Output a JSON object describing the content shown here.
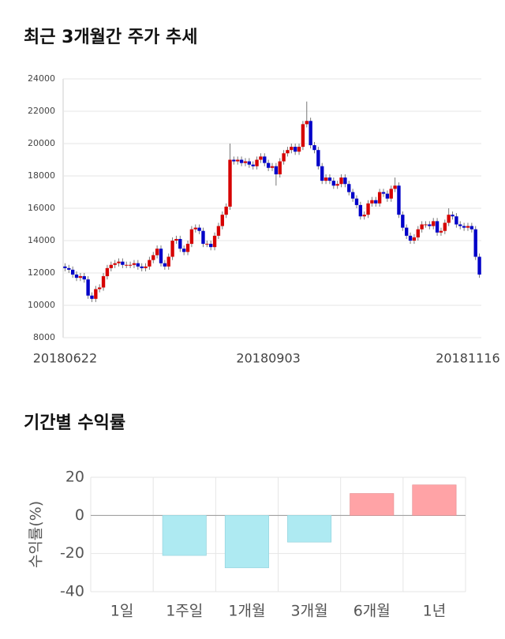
{
  "chart_data": [
    {
      "type": "candlestick",
      "title": "최근 3개월간 주가 추세",
      "categories": [
        "20180622",
        null,
        null,
        null,
        null,
        null,
        null,
        null,
        null,
        null,
        null,
        null,
        null,
        null,
        null,
        null,
        null,
        null,
        null,
        null,
        null,
        null,
        null,
        null,
        null,
        null,
        null,
        null,
        null,
        null,
        null,
        null,
        null,
        null,
        null,
        null,
        null,
        null,
        null,
        null,
        null,
        null,
        null,
        null,
        null,
        null,
        null,
        null,
        null,
        null,
        null,
        null,
        null,
        "20180903",
        null,
        null,
        null,
        null,
        null,
        null,
        null,
        null,
        null,
        null,
        null,
        null,
        null,
        null,
        null,
        null,
        null,
        null,
        null,
        null,
        null,
        null,
        null,
        null,
        null,
        null,
        null,
        null,
        null,
        null,
        null,
        null,
        null,
        null,
        null,
        null,
        null,
        null,
        null,
        null,
        null,
        null,
        null,
        null,
        null,
        null,
        null,
        null,
        null,
        null,
        null,
        "20181116",
        null,
        null,
        null
      ],
      "open": [
        12400,
        12300,
        12200,
        11900,
        11700,
        11800,
        11600,
        10600,
        10400,
        11000,
        11100,
        11800,
        12300,
        12500,
        12600,
        12700,
        12500,
        12500,
        12500,
        12600,
        12400,
        12300,
        12400,
        12800,
        13100,
        13500,
        12600,
        12400,
        13000,
        14000,
        14100,
        13500,
        13300,
        13800,
        14700,
        14800,
        14600,
        13800,
        13800,
        13600,
        14300,
        14900,
        15600,
        16100,
        19000,
        18900,
        19000,
        18800,
        18900,
        18700,
        18600,
        19000,
        19200,
        18800,
        18500,
        18600,
        18100,
        18900,
        19400,
        19600,
        19800,
        19500,
        19800,
        21200,
        21400,
        19900,
        19600,
        18600,
        17700,
        17900,
        17700,
        17400,
        17500,
        17900,
        17500,
        17000,
        16600,
        16200,
        15500,
        15600,
        16300,
        16500,
        16300,
        17000,
        16900,
        16600,
        17200,
        17400,
        15600,
        14800,
        14300,
        14000,
        14200,
        14700,
        15000,
        15000,
        14900,
        15200,
        14500,
        14600,
        15100,
        15600,
        15500,
        15000,
        14900,
        14800,
        14900,
        14700,
        13000
      ],
      "high": [
        12600,
        12500,
        12400,
        12100,
        12000,
        12000,
        11800,
        10800,
        11200,
        11300,
        12000,
        12500,
        12700,
        12800,
        12900,
        12900,
        12700,
        12700,
        12800,
        12800,
        12600,
        12600,
        13000,
        13300,
        13700,
        13700,
        12800,
        13200,
        14200,
        14300,
        14300,
        13700,
        14000,
        14900,
        15000,
        15000,
        14800,
        14000,
        14000,
        14500,
        15100,
        15800,
        16300,
        20000,
        19200,
        19200,
        19200,
        19100,
        19100,
        18900,
        19200,
        19400,
        19400,
        19000,
        18800,
        18800,
        19100,
        19600,
        19800,
        20000,
        20000,
        20000,
        21400,
        22600,
        21600,
        20100,
        19800,
        18800,
        18100,
        18100,
        17900,
        17700,
        18100,
        18100,
        17700,
        17200,
        16800,
        16400,
        15800,
        16500,
        16700,
        16700,
        17200,
        17200,
        17100,
        17400,
        17900,
        17600,
        15800,
        15000,
        14500,
        14400,
        14900,
        15200,
        15200,
        15200,
        15400,
        15400,
        14800,
        15300,
        16000,
        15800,
        15700,
        15200,
        15100,
        15100,
        15100,
        14900,
        13200
      ],
      "low": [
        12100,
        12000,
        11700,
        11500,
        11500,
        11400,
        10400,
        10200,
        10200,
        10800,
        10900,
        11600,
        12100,
        12300,
        12400,
        12300,
        12300,
        12300,
        12300,
        12200,
        12100,
        12100,
        12200,
        12600,
        12900,
        12400,
        12200,
        12200,
        12800,
        13800,
        13300,
        13100,
        13100,
        13600,
        14500,
        14400,
        13600,
        13600,
        13400,
        13400,
        14100,
        14700,
        15400,
        15900,
        18700,
        18700,
        18600,
        18600,
        18500,
        18400,
        18400,
        18800,
        18600,
        18300,
        18300,
        17400,
        17900,
        18700,
        19200,
        19400,
        19300,
        19300,
        19600,
        21000,
        19700,
        19400,
        18400,
        17500,
        17500,
        17500,
        17200,
        17200,
        17300,
        17300,
        16800,
        16400,
        16000,
        15300,
        15300,
        15400,
        16100,
        16100,
        16100,
        16700,
        16400,
        16400,
        17000,
        15400,
        14600,
        14100,
        13800,
        13800,
        14000,
        14500,
        14800,
        14700,
        14700,
        14300,
        14300,
        14400,
        14900,
        15300,
        14800,
        14700,
        14600,
        14600,
        14500,
        12800,
        11700
      ],
      "close": [
        12300,
        12200,
        11900,
        11700,
        11800,
        11600,
        10600,
        10400,
        11000,
        11100,
        11800,
        12300,
        12500,
        12600,
        12700,
        12500,
        12500,
        12500,
        12600,
        12400,
        12300,
        12400,
        12800,
        13100,
        13500,
        12600,
        12400,
        13000,
        14000,
        14100,
        13500,
        13300,
        13800,
        14700,
        14800,
        14600,
        13800,
        13800,
        13600,
        14300,
        14900,
        15600,
        16100,
        19000,
        18900,
        19000,
        18800,
        18900,
        18700,
        18600,
        19000,
        19200,
        18800,
        18500,
        18600,
        18100,
        18900,
        19400,
        19600,
        19800,
        19500,
        19800,
        21200,
        21400,
        19900,
        19600,
        18600,
        17700,
        17900,
        17700,
        17400,
        17500,
        17900,
        17500,
        17000,
        16600,
        16200,
        15500,
        15600,
        16300,
        16500,
        16300,
        17000,
        16900,
        16600,
        17200,
        17400,
        15600,
        14800,
        14300,
        14000,
        14200,
        14700,
        15000,
        15000,
        14900,
        15200,
        14500,
        14600,
        15100,
        15600,
        15500,
        15000,
        14900,
        14800,
        14900,
        14700,
        13000,
        11900
      ],
      "up_color": "#d60000",
      "down_color": "#0000c8",
      "ylim": [
        8000,
        24000
      ],
      "yticks": [
        8000,
        10000,
        12000,
        14000,
        16000,
        18000,
        20000,
        22000,
        24000
      ],
      "grid": true
    },
    {
      "type": "bar",
      "title": "기간별 수익률",
      "y_label": "수익률(%)",
      "categories": [
        "1일",
        "1주일",
        "1개월",
        "3개월",
        "6개월",
        "1년"
      ],
      "values": [
        0,
        -21,
        -27.5,
        -14,
        11.5,
        16
      ],
      "positive_color": "#ffa3a6",
      "negative_color": "#aeeaf2",
      "ylim": [
        -40,
        20
      ],
      "yticks": [
        -40,
        -20,
        0,
        20
      ],
      "grid": true
    }
  ]
}
